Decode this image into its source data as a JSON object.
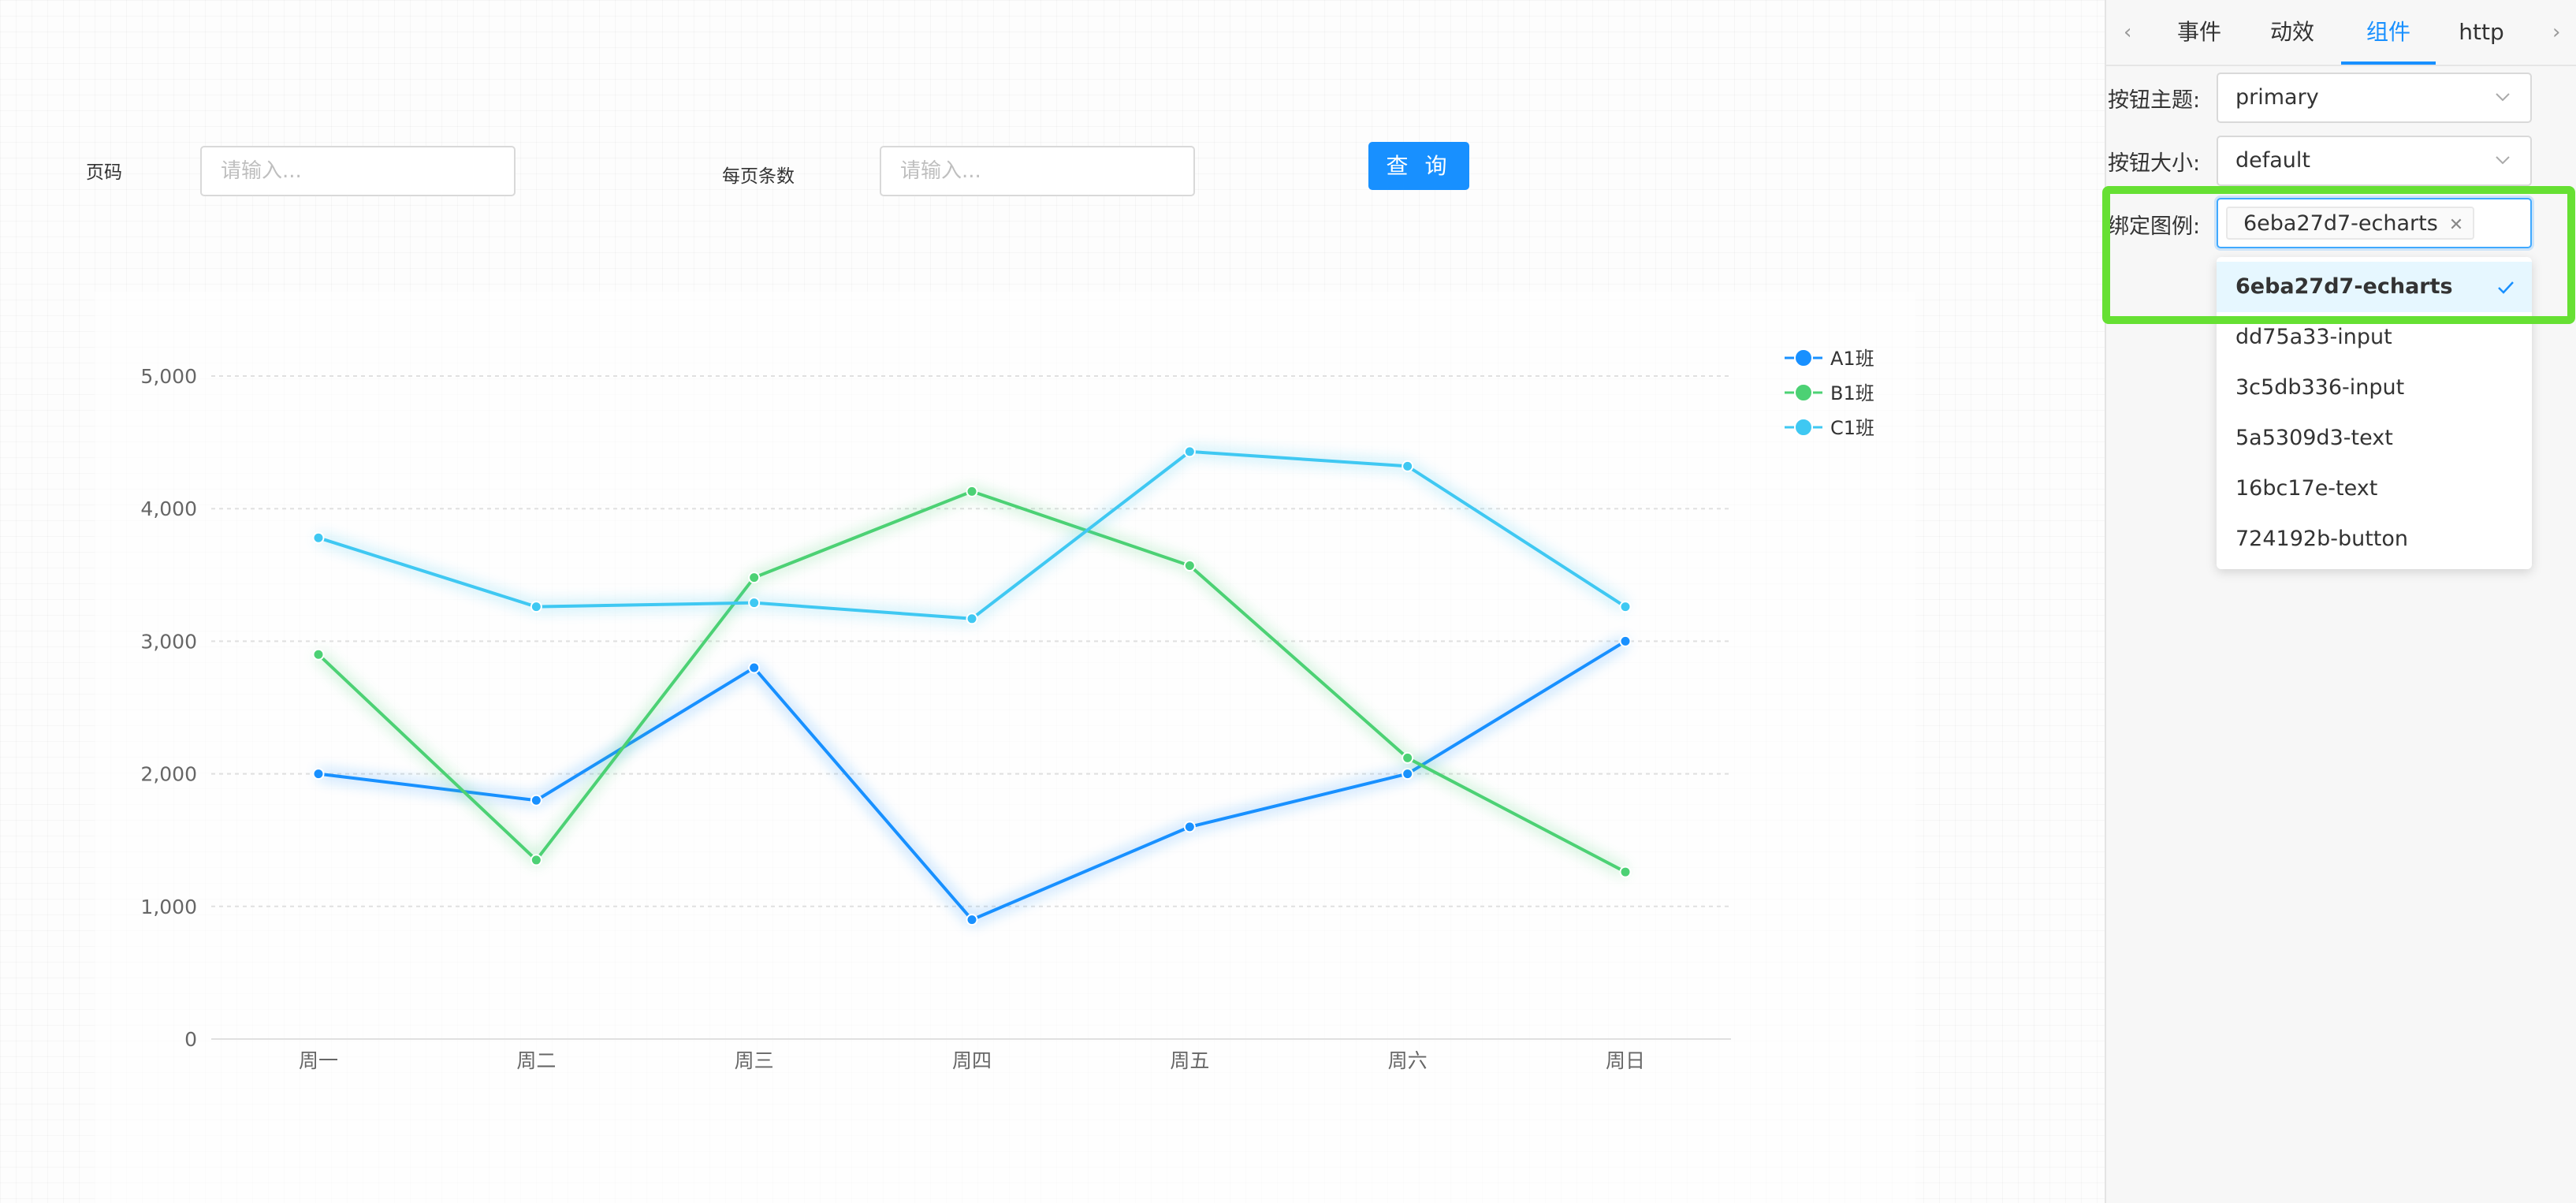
{
  "form": {
    "page_label": "页码",
    "page_placeholder": "请输入...",
    "page_size_label": "每页条数",
    "page_size_placeholder": "请输入...",
    "query_button": "查 询"
  },
  "chart_data": {
    "type": "line",
    "categories": [
      "周一",
      "周二",
      "周三",
      "周四",
      "周五",
      "周六",
      "周日"
    ],
    "series": [
      {
        "name": "A1班",
        "color": "#1890ff",
        "values": [
          2000,
          1800,
          2800,
          900,
          1600,
          2000,
          3000
        ]
      },
      {
        "name": "B1班",
        "color": "#4cd174",
        "values": [
          2900,
          1350,
          3480,
          4130,
          3570,
          2120,
          1260
        ]
      },
      {
        "name": "C1班",
        "color": "#3fc8f2",
        "values": [
          3780,
          3260,
          3290,
          3170,
          4430,
          4320,
          3260
        ]
      }
    ],
    "y_ticks": [
      "0",
      "1,000",
      "2,000",
      "3,000",
      "4,000",
      "5,000"
    ],
    "ylim": [
      0,
      5000
    ],
    "grid": "horizontal-dashed",
    "legend_position": "top-right",
    "title": "",
    "xlabel": "",
    "ylabel": ""
  },
  "panel": {
    "tabs": [
      "事件",
      "动效",
      "组件",
      "http"
    ],
    "active_tab": "组件",
    "theme_label": "按钮主题:",
    "theme_value": "primary",
    "size_label": "按钮大小:",
    "size_value": "default",
    "legend_label": "绑定图例:",
    "legend_tag": "6eba27d7-echarts",
    "dropdown_options": [
      "6eba27d7-echarts",
      "dd75a33-input",
      "3c5db336-input",
      "5a5309d3-text",
      "16bc17e-text",
      "724192b-button"
    ],
    "selected_option": "6eba27d7-echarts"
  }
}
